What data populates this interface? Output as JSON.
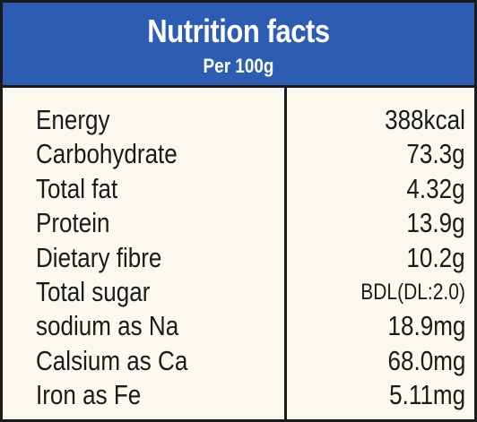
{
  "header": {
    "title": "Nutrition facts",
    "subtitle": "Per 100g"
  },
  "colors": {
    "header_bg": "#2c5db3",
    "panel_bg": "#fbf8ee",
    "border": "#1b1b1b",
    "text": "#1b1b1b"
  },
  "rows": [
    {
      "nutrient": "Energy",
      "amount": "388kcal"
    },
    {
      "nutrient": "Carbohydrate",
      "amount": "73.3g"
    },
    {
      "nutrient": "Total fat",
      "amount": "4.32g"
    },
    {
      "nutrient": "Protein",
      "amount": "13.9g"
    },
    {
      "nutrient": "Dietary fibre",
      "amount": "10.2g"
    },
    {
      "nutrient": "Total sugar",
      "amount": "BDL(DL:2.0)"
    },
    {
      "nutrient": "sodium as Na",
      "amount": "18.9mg"
    },
    {
      "nutrient": "Calsium as Ca",
      "amount": "68.0mg"
    },
    {
      "nutrient": "Iron as Fe",
      "amount": "5.11mg"
    }
  ]
}
